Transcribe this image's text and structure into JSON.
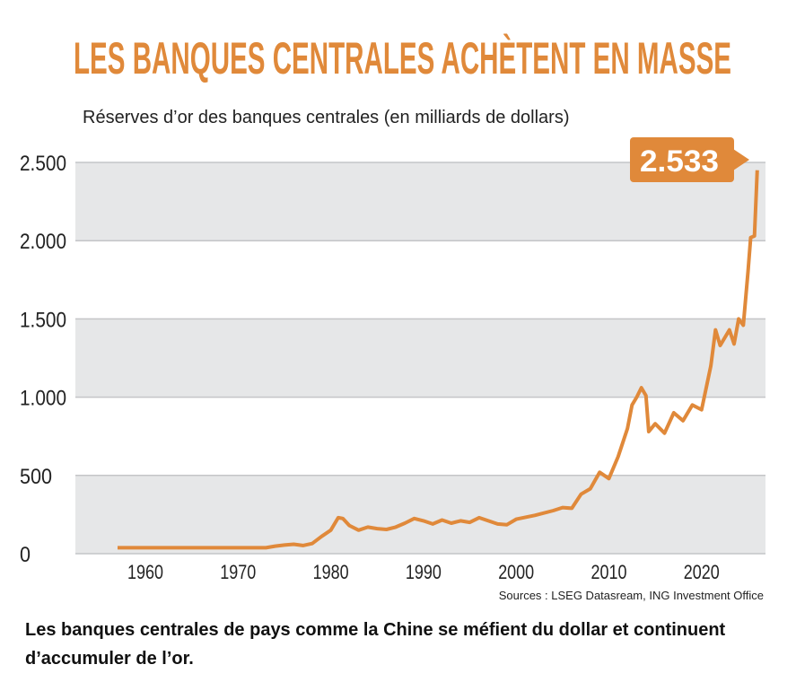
{
  "title": "LES BANQUES CENTRALES ACHÈTENT EN MASSE",
  "caption": "Les banques centrales de pays comme la Chine se méfient du dollar et continuent d’accumuler de l’or.",
  "source": "Sources : LSEG Datasream, ING Investment Office",
  "colors": {
    "accent": "#e0893a",
    "band": "#e6e7e8",
    "grid": "#c4c5c7"
  },
  "chart_data": {
    "type": "line",
    "title": "Réserves d’or des banques centrales (en milliards de dollars)",
    "xlabel": "",
    "ylabel": "",
    "xlim": [
      1954,
      2028
    ],
    "ylim": [
      0,
      2500
    ],
    "yticks": [
      0,
      500,
      1000,
      1500,
      2000,
      2500
    ],
    "ytick_labels": [
      "0",
      "500",
      "1.000",
      "1.500",
      "2.000",
      "2.500"
    ],
    "xticks": [
      1960,
      1970,
      1980,
      1990,
      2000,
      2010,
      2020
    ],
    "xtick_labels": [
      "1960",
      "1970",
      "1980",
      "1990",
      "2000",
      "2010",
      "2020"
    ],
    "annotation": "2.533",
    "series": [
      {
        "name": "Réserves d’or",
        "x": [
          1957,
          1973,
          1974,
          1975,
          1976,
          1977,
          1978,
          1979,
          1980,
          1980.8,
          1981.3,
          1982,
          1983,
          1984,
          1985,
          1986,
          1987,
          1988,
          1989,
          1990,
          1991,
          1992,
          1993,
          1994,
          1995,
          1996,
          1997,
          1998,
          1999,
          2000,
          2002,
          2004,
          2005,
          2006,
          2007,
          2008,
          2009,
          2010,
          2011,
          2012,
          2012.5,
          2013,
          2013.5,
          2014,
          2014.3,
          2015,
          2016,
          2017,
          2018,
          2019,
          2020,
          2021,
          2021.5,
          2022,
          2023,
          2023.5,
          2024,
          2024.5,
          2025,
          2025.3,
          2025.7,
          2026
        ],
        "values": [
          38,
          38,
          48,
          55,
          60,
          52,
          65,
          110,
          150,
          230,
          225,
          180,
          150,
          170,
          160,
          155,
          170,
          195,
          225,
          210,
          190,
          215,
          195,
          210,
          200,
          230,
          210,
          190,
          185,
          220,
          245,
          275,
          295,
          290,
          380,
          415,
          520,
          480,
          620,
          800,
          950,
          1000,
          1060,
          1010,
          780,
          830,
          770,
          900,
          850,
          950,
          920,
          1200,
          1430,
          1330,
          1430,
          1340,
          1500,
          1460,
          1800,
          2020,
          2030,
          2450
        ]
      }
    ]
  }
}
